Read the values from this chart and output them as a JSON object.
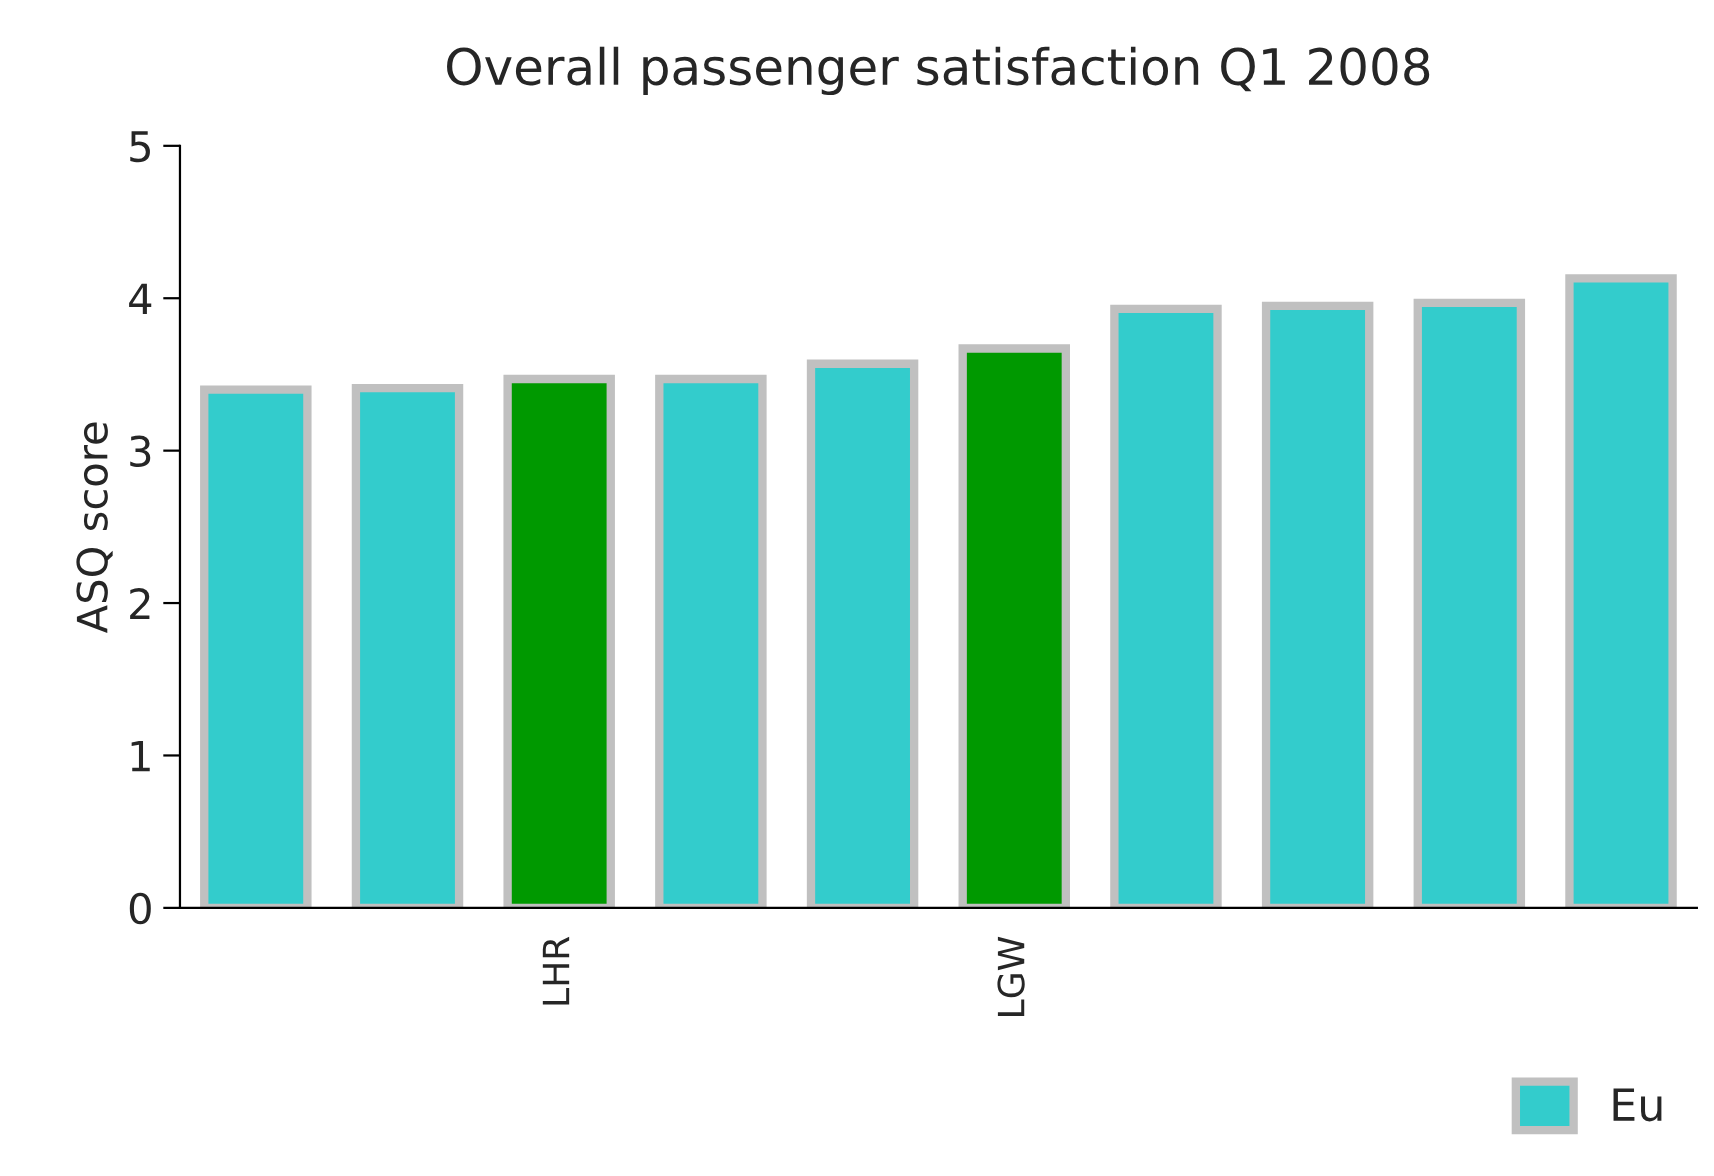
{
  "chart_data": {
    "type": "bar",
    "title": "Overall passenger satisfaction Q1 2008",
    "ylabel": "ASQ score",
    "categories": [
      null,
      null,
      "LHR",
      null,
      null,
      "LGW",
      null,
      null,
      null,
      null
    ],
    "series": [
      {
        "name": "Eu",
        "color": "#33cccc",
        "values": [
          3.4,
          3.41,
          3.47,
          3.47,
          3.57,
          3.67,
          3.93,
          3.95,
          3.97,
          4.13
        ],
        "colors": [
          "#33cccc",
          "#33cccc",
          "#009900",
          "#33cccc",
          "#33cccc",
          "#009900",
          "#33cccc",
          "#33cccc",
          "#33cccc",
          "#33cccc"
        ]
      }
    ],
    "ylim": [
      0,
      5
    ],
    "yticks": [
      0,
      1,
      2,
      3,
      4,
      5
    ],
    "grid": false,
    "legend": "bottom right"
  }
}
